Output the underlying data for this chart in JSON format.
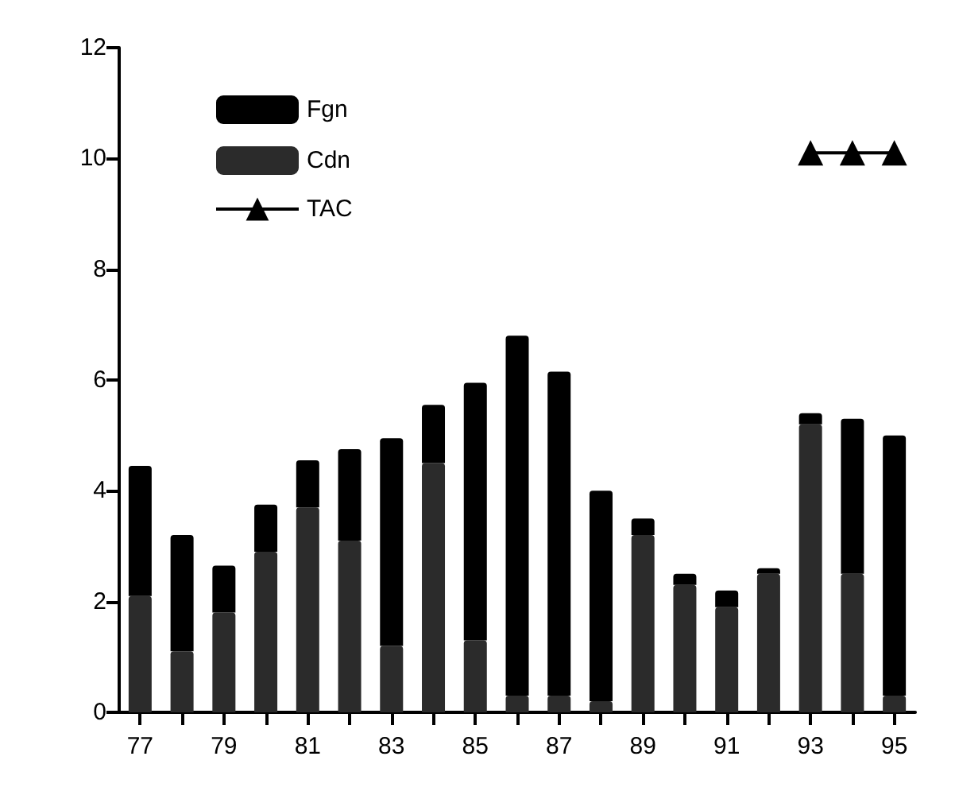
{
  "chart_data": {
    "type": "bar",
    "stacked": true,
    "categories": [
      "77",
      null,
      "79",
      null,
      "81",
      null,
      "83",
      null,
      "85",
      null,
      "87",
      null,
      "89",
      null,
      "91",
      null,
      "93",
      null,
      "95"
    ],
    "series": [
      {
        "name": "Cdn",
        "color": "#2b2b2b",
        "values": [
          2.1,
          1.1,
          1.8,
          2.9,
          3.7,
          3.1,
          1.2,
          4.5,
          1.3,
          0.3,
          0.3,
          0.2,
          3.2,
          2.3,
          1.9,
          2.5,
          5.2,
          2.5,
          0.3
        ]
      },
      {
        "name": "Fgn",
        "color": "#000000",
        "values": [
          2.35,
          2.1,
          0.85,
          0.85,
          0.85,
          1.65,
          3.75,
          1.05,
          4.65,
          6.5,
          5.85,
          3.8,
          0.3,
          0.2,
          0.3,
          0.1,
          0.2,
          2.8,
          4.7
        ]
      },
      {
        "name": "TAC",
        "type": "line",
        "color": "#000000",
        "marker": "triangle",
        "values": [
          null,
          null,
          null,
          null,
          null,
          null,
          null,
          null,
          null,
          null,
          null,
          null,
          null,
          null,
          null,
          null,
          10.1,
          10.1,
          10.1
        ]
      }
    ],
    "ylim": [
      0,
      12
    ],
    "yticks": [
      0,
      2,
      4,
      6,
      8,
      10,
      12
    ],
    "grid": false,
    "legend": "top left"
  }
}
